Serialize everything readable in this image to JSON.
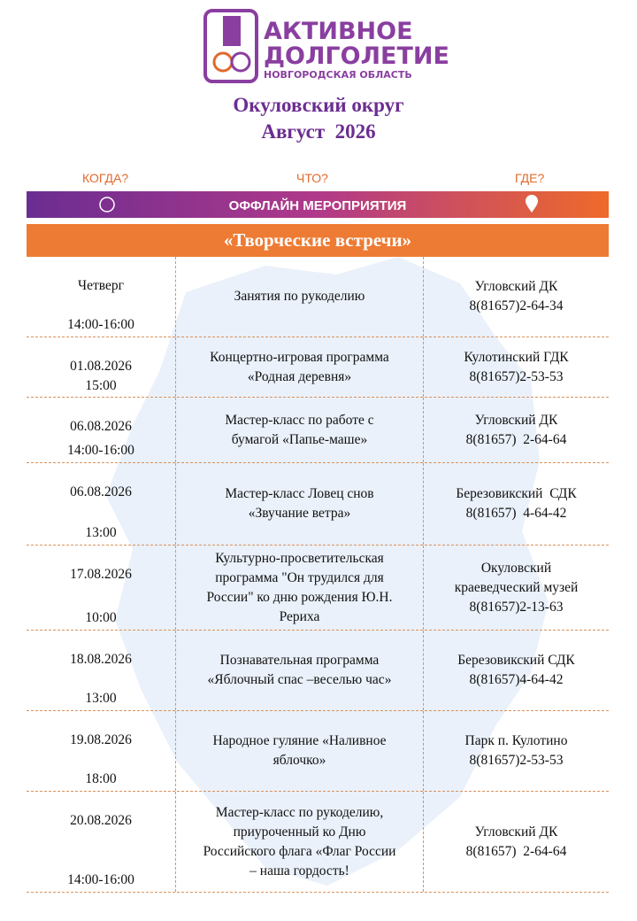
{
  "logo": {
    "line1": "АКТИВНОЕ",
    "line2": "ДОЛГОЛЕТИЕ",
    "line3": "НОВГОРОДСКАЯ ОБЛАСТЬ"
  },
  "header": {
    "title": "Окуловский округ",
    "subtitle": "Август  2026"
  },
  "columns": {
    "when": "КОГДА?",
    "what": "ЧТО?",
    "where": "ГДЕ?"
  },
  "banner": "ОФФЛАЙН МЕРОПРИЯТИЯ",
  "section": "«Творческие встречи»",
  "table": {
    "rows": [
      {
        "when": [
          "Четверг",
          "14:00-16:00"
        ],
        "what": [
          "Занятия по рукоделию"
        ],
        "where": [
          "Угловский ДК",
          "8(81657)2-64-34"
        ]
      },
      {
        "when": [
          "01.08.2026",
          "15:00"
        ],
        "what": [
          "Концертно-игровая программа",
          "«Родная деревня»"
        ],
        "where": [
          "Кулотинский ГДК",
          "8(81657)2-53-53"
        ]
      },
      {
        "when": [
          "06.08.2026",
          "14:00-16:00"
        ],
        "what": [
          "Мастер-класс по работе с",
          "бумагой «Папье-маше»"
        ],
        "where": [
          "Угловский ДК",
          "8(81657)  2-64-64"
        ]
      },
      {
        "when": [
          "06.08.2026",
          "13:00"
        ],
        "what": [
          "Мастер-класс Ловец снов",
          "«Звучание ветра»"
        ],
        "where": [
          "Березовикский  СДК",
          "8(81657)  4-64-42"
        ]
      },
      {
        "when": [
          "17.08.2026",
          "10:00"
        ],
        "what": [
          "Культурно-просветительская",
          "программа \"Он трудился для",
          "России\" ко дню рождения Ю.Н.",
          "Рериха"
        ],
        "where": [
          "Окуловский",
          "краеведческий музей",
          "8(81657)2-13-63"
        ]
      },
      {
        "when": [
          "18.08.2026",
          "13:00"
        ],
        "what": [
          "Познавательная программа",
          "«Яблочный спас –веселью час»"
        ],
        "where": [
          "Березовикский СДК",
          "8(81657)4-64-42"
        ]
      },
      {
        "when": [
          "19.08.2026",
          "18:00"
        ],
        "what": [
          "Народное гуляние «Наливное",
          "яблочко»"
        ],
        "where": [
          "Парк п. Кулотино",
          "8(81657)2-53-53"
        ]
      },
      {
        "when": [
          "20.08.2026",
          "14:00-16:00"
        ],
        "what": [
          "Мастер-класс по рукоделию,",
          "приуроченный ко Дню",
          "Российского флага «Флаг России",
          "– наша гордость!"
        ],
        "where": [
          "Угловский ДК",
          "8(81657)  2-64-64"
        ]
      }
    ]
  }
}
